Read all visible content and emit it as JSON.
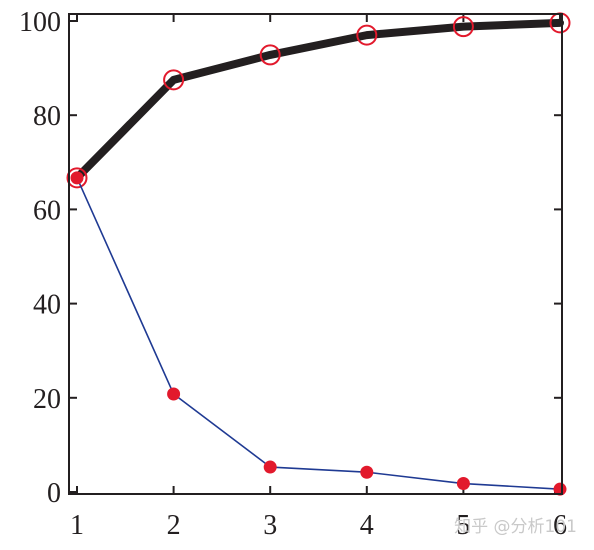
{
  "chart_data": {
    "type": "line",
    "title": "",
    "xlabel": "",
    "ylabel": "",
    "x": [
      1,
      2,
      3,
      4,
      5,
      6
    ],
    "xlim": [
      1,
      6
    ],
    "ylim": [
      0,
      100
    ],
    "x_ticks": [
      "1",
      "2",
      "3",
      "4",
      "5",
      "6"
    ],
    "y_ticks": [
      "0",
      "20",
      "40",
      "60",
      "80",
      "100"
    ],
    "grid": false,
    "legend": "none",
    "series": [
      {
        "values": [
          66.7,
          87.5,
          92.8,
          97.0,
          98.8,
          99.6
        ],
        "color": "#231f20",
        "line_style": "thick",
        "marker": "open-circle",
        "marker_color": "#e2192c"
      },
      {
        "values": [
          66.7,
          20.8,
          5.3,
          4.2,
          1.8,
          0.6
        ],
        "color": "#1f3a93",
        "line_style": "thin",
        "marker": "filled-circle",
        "marker_color": "#e2192c"
      }
    ]
  },
  "watermark": "知乎 @分析101"
}
